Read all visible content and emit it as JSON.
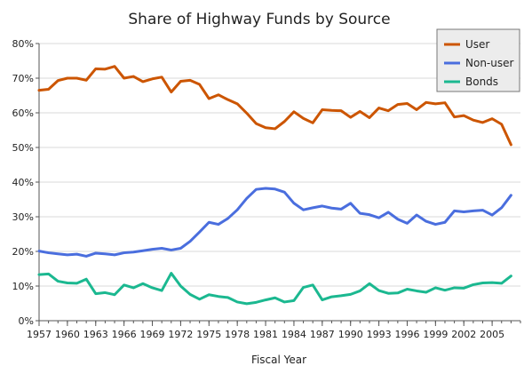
{
  "chart_data": {
    "type": "line",
    "title": "Share of Highway Funds by Source",
    "xlabel": "Fiscal Year",
    "ylabel": "",
    "xlim": [
      1957,
      2008
    ],
    "ylim": [
      0,
      80
    ],
    "y_ticks": [
      0,
      10,
      20,
      30,
      40,
      50,
      60,
      70,
      80
    ],
    "y_tick_labels": [
      "0%",
      "10%",
      "20%",
      "30%",
      "40%",
      "50%",
      "60%",
      "70%",
      "80%"
    ],
    "x_ticks": [
      1957,
      1960,
      1963,
      1966,
      1969,
      1972,
      1975,
      1978,
      1981,
      1984,
      1987,
      1990,
      1993,
      1996,
      1999,
      2002,
      2005
    ],
    "x_tick_labels": [
      "1957",
      "1960",
      "1963",
      "1966",
      "1969",
      "1972",
      "1975",
      "1978",
      "1981",
      "1984",
      "1987",
      "1990",
      "1993",
      "1996",
      "1999",
      "2002",
      "2005"
    ],
    "grid": true,
    "legend_position": "top-right",
    "x": [
      1957,
      1958,
      1959,
      1960,
      1961,
      1962,
      1963,
      1964,
      1965,
      1966,
      1967,
      1968,
      1969,
      1970,
      1971,
      1972,
      1973,
      1974,
      1975,
      1976,
      1977,
      1978,
      1979,
      1980,
      1981,
      1982,
      1983,
      1984,
      1985,
      1986,
      1987,
      1988,
      1989,
      1990,
      1991,
      1992,
      1993,
      1994,
      1995,
      1996,
      1997,
      1998,
      1999,
      2000,
      2001,
      2002,
      2003,
      2004,
      2005,
      2006,
      2007,
      2008
    ],
    "series": [
      {
        "name": "User",
        "color": "#cc5500",
        "values": [
          66.5,
          66.8,
          69.3,
          70.0,
          70.0,
          69.4,
          72.7,
          72.6,
          73.4,
          70.0,
          70.5,
          69.0,
          69.8,
          70.3,
          66.0,
          69.1,
          69.4,
          68.2,
          64.1,
          65.2,
          63.8,
          62.6,
          59.9,
          56.9,
          55.7,
          55.4,
          57.5,
          60.3,
          58.4,
          57.1,
          60.9,
          60.7,
          60.6,
          58.7,
          60.4,
          58.6,
          61.4,
          60.6,
          62.4,
          62.7,
          60.9,
          63.0,
          62.6,
          62.9,
          58.8,
          59.2,
          57.9,
          57.2,
          58.3,
          56.7,
          50.8,
          null
        ]
      },
      {
        "name": "Non-user",
        "color": "#4a6ede",
        "values": [
          20.1,
          19.6,
          19.3,
          19.0,
          19.2,
          18.6,
          19.5,
          19.3,
          19.0,
          19.6,
          19.8,
          20.2,
          20.6,
          20.9,
          20.4,
          20.9,
          22.9,
          25.6,
          28.4,
          27.8,
          29.5,
          32.0,
          35.3,
          37.9,
          38.2,
          38.0,
          37.1,
          33.9,
          32.0,
          32.6,
          33.1,
          32.5,
          32.2,
          33.9,
          31.0,
          30.6,
          29.7,
          31.3,
          29.3,
          28.1,
          30.5,
          28.7,
          27.8,
          28.4,
          31.7,
          31.4,
          31.7,
          31.9,
          30.5,
          32.6,
          36.2,
          null
        ]
      },
      {
        "name": "Bonds",
        "color": "#1bb890",
        "values": [
          13.3,
          13.5,
          11.4,
          10.9,
          10.8,
          12.0,
          7.8,
          8.1,
          7.5,
          10.3,
          9.5,
          10.7,
          9.5,
          8.7,
          13.7,
          10.0,
          7.6,
          6.2,
          7.5,
          7.0,
          6.7,
          5.4,
          4.9,
          5.3,
          6.0,
          6.6,
          5.4,
          5.8,
          9.6,
          10.3,
          6.0,
          6.9,
          7.2,
          7.6,
          8.6,
          10.7,
          8.7,
          7.9,
          8.0,
          9.1,
          8.6,
          8.2,
          9.5,
          8.8,
          9.5,
          9.4,
          10.4,
          10.9,
          11.0,
          10.8,
          12.9,
          null
        ]
      }
    ]
  }
}
